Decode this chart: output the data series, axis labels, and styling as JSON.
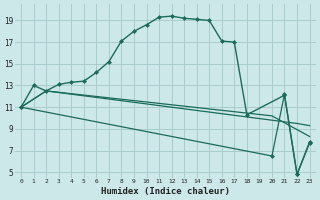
{
  "xlabel": "Humidex (Indice chaleur)",
  "bg_color": "#cce8e8",
  "grid_color": "#aacccc",
  "line_color": "#1a6b5a",
  "xlim": [
    -0.5,
    23.5
  ],
  "ylim": [
    4.5,
    20.5
  ],
  "yticks": [
    5,
    7,
    9,
    11,
    13,
    15,
    17,
    19
  ],
  "xticks": [
    0,
    1,
    2,
    3,
    4,
    5,
    6,
    7,
    8,
    9,
    10,
    11,
    12,
    13,
    14,
    15,
    16,
    17,
    18,
    19,
    20,
    21,
    22,
    23
  ],
  "curve1_x": [
    0,
    1,
    2,
    3,
    4,
    5,
    6,
    7,
    8,
    9,
    10,
    11,
    12,
    13,
    14,
    15,
    16,
    17,
    18,
    21,
    22,
    23
  ],
  "curve1_y": [
    11,
    13,
    12.5,
    13.1,
    13.3,
    13.4,
    14.2,
    15.2,
    17.1,
    18.0,
    18.6,
    19.3,
    19.4,
    19.2,
    19.1,
    19.0,
    17.1,
    17.0,
    10.3,
    12.1,
    4.8,
    7.7
  ],
  "curve2_x": [
    0,
    2,
    22,
    23
  ],
  "curve2_y": [
    11,
    12.5,
    9.5,
    9.3
  ],
  "curve3_x": [
    0,
    2,
    20,
    23
  ],
  "curve3_y": [
    11,
    12.5,
    10.2,
    8.3
  ],
  "curve4_x": [
    0,
    20,
    21,
    22,
    23
  ],
  "curve4_y": [
    11,
    6.5,
    12.2,
    4.8,
    7.8
  ]
}
